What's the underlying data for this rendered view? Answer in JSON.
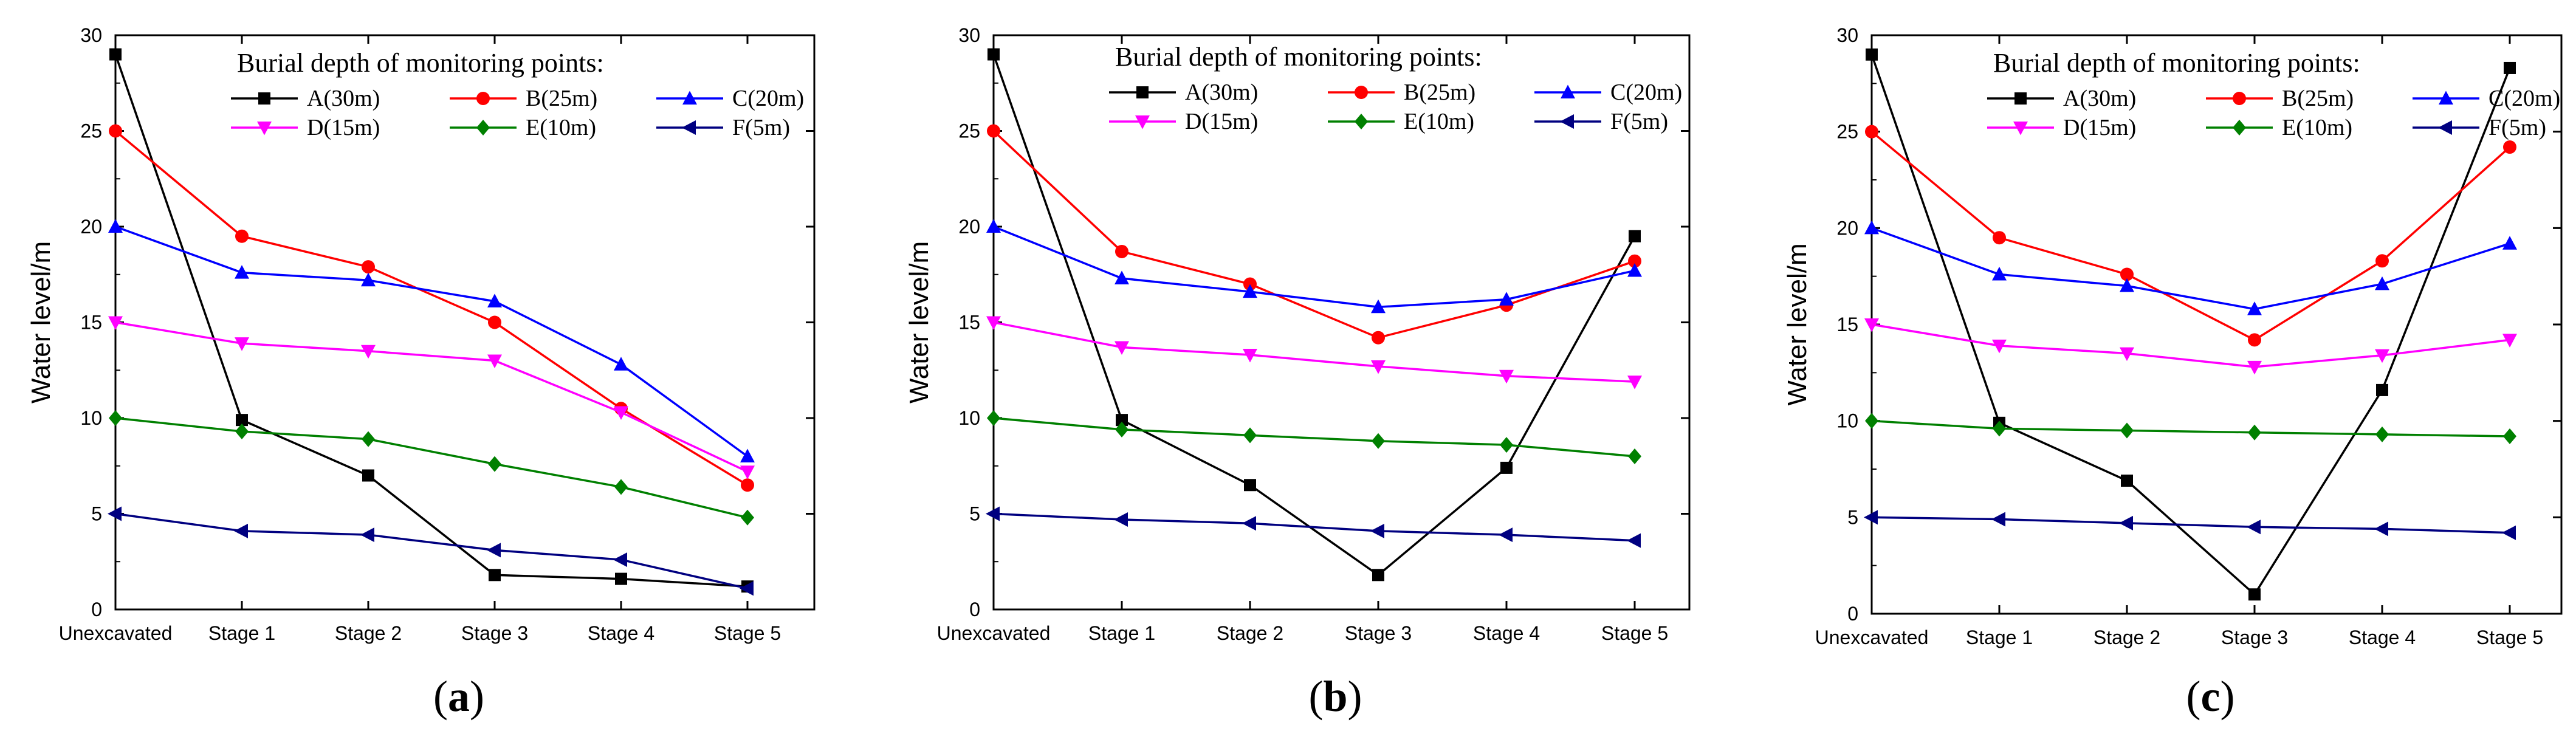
{
  "chart_data": [
    {
      "type": "line",
      "panel_label": "a",
      "ylabel": "Water level/m",
      "xlabel": "",
      "ylim": [
        0,
        30
      ],
      "yticks": [
        0,
        5,
        10,
        15,
        20,
        25,
        30
      ],
      "categories": [
        "Unexcavated",
        "Stage 1",
        "Stage 2",
        "Stage 3",
        "Stage 4",
        "Stage 5"
      ],
      "legend_title": "Burial depth of monitoring points:",
      "series": [
        {
          "name": "A(30m)",
          "color": "#000000",
          "marker": "square",
          "values": [
            29.0,
            9.9,
            7.0,
            1.8,
            1.6,
            1.2
          ]
        },
        {
          "name": "B(25m)",
          "color": "#ff0000",
          "marker": "circle",
          "values": [
            25.0,
            19.5,
            17.9,
            15.0,
            10.5,
            6.5
          ]
        },
        {
          "name": "C(20m)",
          "color": "#0000ff",
          "marker": "triangle-up",
          "values": [
            20.0,
            17.6,
            17.2,
            16.1,
            12.8,
            8.0
          ]
        },
        {
          "name": "D(15m)",
          "color": "#ff00ff",
          "marker": "triangle-down",
          "values": [
            15.0,
            13.9,
            13.5,
            13.0,
            10.3,
            7.2
          ]
        },
        {
          "name": "E(10m)",
          "color": "#008000",
          "marker": "diamond",
          "values": [
            10.0,
            9.3,
            8.9,
            7.6,
            6.4,
            4.8
          ]
        },
        {
          "name": "F(5m)",
          "color": "#000080",
          "marker": "triangle-left",
          "values": [
            5.0,
            4.1,
            3.9,
            3.1,
            2.6,
            1.1
          ]
        }
      ]
    },
    {
      "type": "line",
      "panel_label": "b",
      "ylabel": "Water level/m",
      "xlabel": "",
      "ylim": [
        0,
        30
      ],
      "yticks": [
        0,
        5,
        10,
        15,
        20,
        25,
        30
      ],
      "categories": [
        "Unexcavated",
        "Stage 1",
        "Stage 2",
        "Stage 3",
        "Stage 4",
        "Stage 5"
      ],
      "legend_title": "Burial depth of monitoring points:",
      "series": [
        {
          "name": "A(30m)",
          "color": "#000000",
          "marker": "square",
          "values": [
            29.0,
            9.9,
            6.5,
            1.8,
            7.4,
            19.5
          ]
        },
        {
          "name": "B(25m)",
          "color": "#ff0000",
          "marker": "circle",
          "values": [
            25.0,
            18.7,
            17.0,
            14.2,
            15.9,
            18.2
          ]
        },
        {
          "name": "C(20m)",
          "color": "#0000ff",
          "marker": "triangle-up",
          "values": [
            20.0,
            17.3,
            16.6,
            15.8,
            16.2,
            17.7
          ]
        },
        {
          "name": "D(15m)",
          "color": "#ff00ff",
          "marker": "triangle-down",
          "values": [
            15.0,
            13.7,
            13.3,
            12.7,
            12.2,
            11.9
          ]
        },
        {
          "name": "E(10m)",
          "color": "#008000",
          "marker": "diamond",
          "values": [
            10.0,
            9.4,
            9.1,
            8.8,
            8.6,
            8.0
          ]
        },
        {
          "name": "F(5m)",
          "color": "#000080",
          "marker": "triangle-left",
          "values": [
            5.0,
            4.7,
            4.5,
            4.1,
            3.9,
            3.6
          ]
        }
      ]
    },
    {
      "type": "line",
      "panel_label": "c",
      "ylabel": "Water level/m",
      "xlabel": "",
      "ylim": [
        0,
        30
      ],
      "yticks": [
        0,
        5,
        10,
        15,
        20,
        25,
        30
      ],
      "categories": [
        "Unexcavated",
        "Stage 1",
        "Stage 2",
        "Stage 3",
        "Stage 4",
        "Stage 5"
      ],
      "legend_title": "Burial depth of monitoring points:",
      "series": [
        {
          "name": "A(30m)",
          "color": "#000000",
          "marker": "square",
          "values": [
            29.0,
            9.9,
            6.9,
            1.0,
            11.6,
            28.3
          ]
        },
        {
          "name": "B(25m)",
          "color": "#ff0000",
          "marker": "circle",
          "values": [
            25.0,
            19.5,
            17.6,
            14.2,
            18.3,
            24.2
          ]
        },
        {
          "name": "C(20m)",
          "color": "#0000ff",
          "marker": "triangle-up",
          "values": [
            20.0,
            17.6,
            17.0,
            15.8,
            17.1,
            19.2
          ]
        },
        {
          "name": "D(15m)",
          "color": "#ff00ff",
          "marker": "triangle-down",
          "values": [
            15.0,
            13.9,
            13.5,
            12.8,
            13.4,
            14.2
          ]
        },
        {
          "name": "E(10m)",
          "color": "#008000",
          "marker": "diamond",
          "values": [
            10.0,
            9.6,
            9.5,
            9.4,
            9.3,
            9.2
          ]
        },
        {
          "name": "F(5m)",
          "color": "#000080",
          "marker": "triangle-left",
          "values": [
            5.0,
            4.9,
            4.7,
            4.5,
            4.4,
            4.2
          ]
        }
      ]
    }
  ]
}
